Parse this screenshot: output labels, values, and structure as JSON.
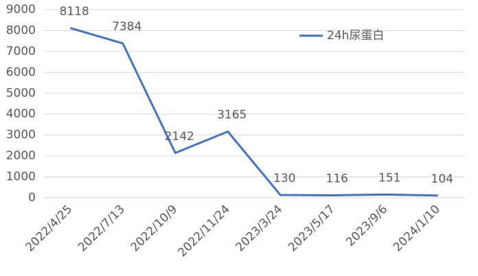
{
  "chart_data": {
    "type": "line",
    "categories": [
      "2022/4/25",
      "2022/7/13",
      "2022/10/9",
      "2022/11/24",
      "2023/3/24",
      "2023/5/17",
      "2023/9/6",
      "2024/1/10"
    ],
    "series": [
      {
        "name": "24h尿蛋白",
        "color": "#4472c4",
        "values": [
          8118,
          7384,
          2142,
          3165,
          130,
          116,
          151,
          104
        ]
      }
    ],
    "ylim": [
      0,
      9000
    ],
    "yticks": [
      0,
      1000,
      2000,
      3000,
      4000,
      5000,
      6000,
      7000,
      8000,
      9000
    ],
    "grid": true,
    "data_labels": true,
    "legend": "upper right"
  }
}
